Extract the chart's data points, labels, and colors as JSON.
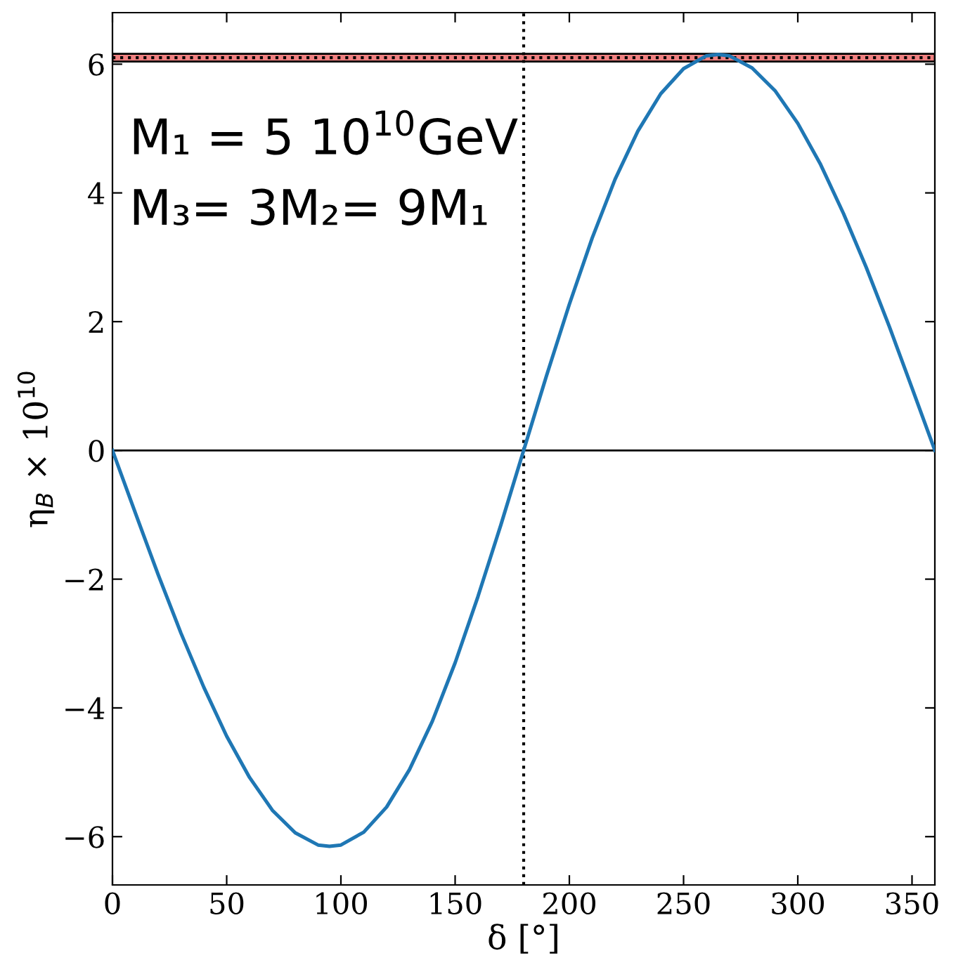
{
  "chart_data": {
    "type": "line",
    "xlabel": "δ [°]",
    "ylabel": "η$_{B}$ × 10$^{10}$",
    "annotations": [
      "M₁ = 5 10$^{10}$GeV",
      "M₃= 3M₂= 9M₁"
    ],
    "x": [
      0,
      10,
      20,
      30,
      40,
      50,
      60,
      70,
      80,
      90,
      95,
      100,
      110,
      120,
      130,
      140,
      150,
      160,
      170,
      180,
      190,
      200,
      210,
      220,
      230,
      240,
      250,
      260,
      265,
      270,
      280,
      290,
      300,
      310,
      320,
      330,
      340,
      350,
      360
    ],
    "series": [
      {
        "color": "#1f77b4",
        "values": [
          0,
          -0.97,
          -1.93,
          -2.84,
          -3.68,
          -4.44,
          -5.08,
          -5.59,
          -5.94,
          -6.13,
          -6.15,
          -6.13,
          -5.93,
          -5.54,
          -4.96,
          -4.21,
          -3.3,
          -2.27,
          -1.16,
          0,
          1.16,
          2.27,
          3.3,
          4.21,
          4.96,
          5.54,
          5.93,
          6.13,
          6.15,
          6.13,
          5.94,
          5.59,
          5.08,
          4.44,
          3.68,
          2.84,
          1.93,
          0.97,
          0
        ]
      }
    ],
    "xlim": [
      0,
      360
    ],
    "ylim": [
      -6.75,
      6.8
    ],
    "xticks": [
      0,
      50,
      100,
      150,
      200,
      250,
      300,
      350
    ],
    "yticks": [
      -6,
      -4,
      -2,
      0,
      2,
      4,
      6
    ],
    "ref_lines": [
      {
        "axis": "y",
        "value": 0,
        "color": "#000000",
        "line_style": "solid"
      },
      {
        "axis": "x",
        "value": 180,
        "color": "#000000",
        "line_style": "dotted"
      },
      {
        "axis": "y",
        "value": 6.1,
        "color": "#000000",
        "line_style": "dotted"
      }
    ],
    "bands": [
      {
        "axis": "y",
        "from": 6.04,
        "to": 6.16,
        "color": "#f08080"
      }
    ],
    "grid": false,
    "legend": false,
    "marker": "none",
    "line_style": "solid"
  }
}
